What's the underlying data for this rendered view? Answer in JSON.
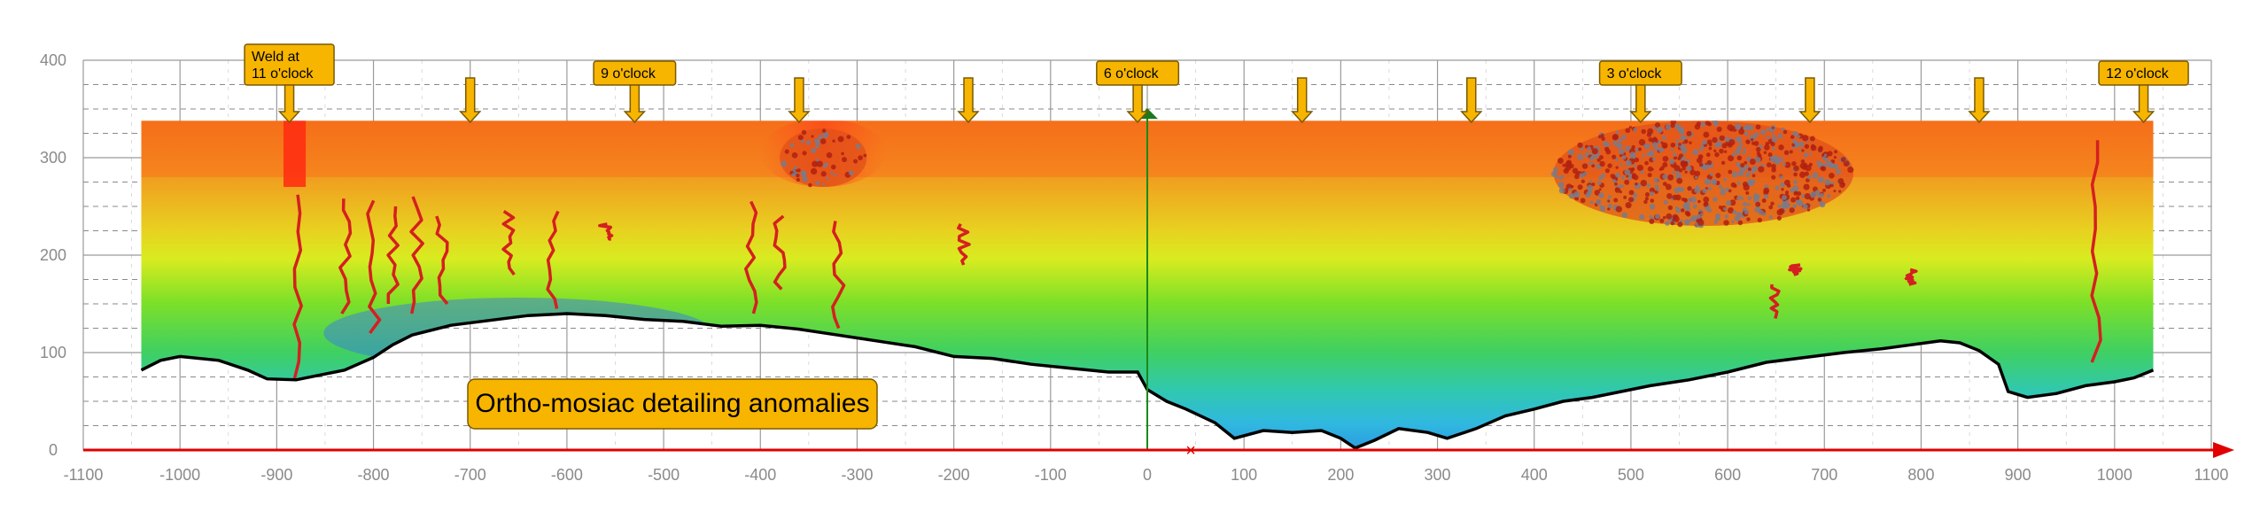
{
  "chart_data": {
    "type": "heatmap",
    "title": "Ortho-mosiac detailing anomalies",
    "xlim": [
      -1100,
      1100
    ],
    "ylim": [
      0,
      400
    ],
    "x_ticks": [
      -1100,
      -1000,
      -900,
      -800,
      -700,
      -600,
      -500,
      -400,
      -300,
      -200,
      -100,
      0,
      100,
      200,
      300,
      400,
      500,
      600,
      700,
      800,
      900,
      1000,
      1100
    ],
    "y_ticks": [
      0,
      100,
      200,
      300,
      400
    ],
    "grid": true,
    "colors": {
      "axis": "#e00000",
      "grid_major": "#9a9a9a",
      "grid_minor": "#8a8a8a",
      "callout_fill": "#f7b500",
      "callout_border": "#7a5a00",
      "crack": "#d42020",
      "profile": "#000000"
    },
    "callouts": [
      {
        "x": -887,
        "label": [
          "Weld at",
          "11 o'clock"
        ]
      },
      {
        "x": -530,
        "label": [
          "9 o'clock"
        ]
      },
      {
        "x": -10,
        "label": [
          "6 o'clock"
        ]
      },
      {
        "x": 510,
        "label": [
          "3 o'clock"
        ]
      },
      {
        "x": 1030,
        "label": [
          "12 o'clock"
        ]
      }
    ],
    "markers": [
      -700,
      -360,
      -185,
      160,
      335,
      685,
      860
    ],
    "top_profile_y": 338,
    "bottom_profile": [
      [
        -1040,
        82
      ],
      [
        -1020,
        92
      ],
      [
        -1000,
        96
      ],
      [
        -960,
        92
      ],
      [
        -930,
        82
      ],
      [
        -910,
        73
      ],
      [
        -880,
        72
      ],
      [
        -850,
        78
      ],
      [
        -830,
        82
      ],
      [
        -800,
        95
      ],
      [
        -780,
        108
      ],
      [
        -760,
        118
      ],
      [
        -720,
        128
      ],
      [
        -680,
        133
      ],
      [
        -640,
        138
      ],
      [
        -600,
        140
      ],
      [
        -560,
        138
      ],
      [
        -520,
        134
      ],
      [
        -480,
        132
      ],
      [
        -440,
        127
      ],
      [
        -400,
        128
      ],
      [
        -360,
        124
      ],
      [
        -320,
        118
      ],
      [
        -280,
        112
      ],
      [
        -240,
        106
      ],
      [
        -200,
        96
      ],
      [
        -160,
        94
      ],
      [
        -120,
        88
      ],
      [
        -80,
        84
      ],
      [
        -40,
        80
      ],
      [
        -10,
        80
      ],
      [
        0,
        62
      ],
      [
        20,
        50
      ],
      [
        40,
        42
      ],
      [
        70,
        28
      ],
      [
        90,
        12
      ],
      [
        120,
        20
      ],
      [
        150,
        18
      ],
      [
        180,
        20
      ],
      [
        200,
        12
      ],
      [
        215,
        2
      ],
      [
        235,
        10
      ],
      [
        260,
        22
      ],
      [
        290,
        18
      ],
      [
        310,
        12
      ],
      [
        340,
        22
      ],
      [
        370,
        35
      ],
      [
        400,
        42
      ],
      [
        430,
        50
      ],
      [
        460,
        54
      ],
      [
        490,
        60
      ],
      [
        520,
        66
      ],
      [
        560,
        72
      ],
      [
        600,
        80
      ],
      [
        640,
        90
      ],
      [
        680,
        95
      ],
      [
        720,
        100
      ],
      [
        760,
        104
      ],
      [
        790,
        108
      ],
      [
        820,
        112
      ],
      [
        840,
        110
      ],
      [
        860,
        102
      ],
      [
        880,
        88
      ],
      [
        890,
        60
      ],
      [
        910,
        54
      ],
      [
        940,
        58
      ],
      [
        970,
        66
      ],
      [
        1000,
        70
      ],
      [
        1020,
        74
      ],
      [
        1040,
        82
      ]
    ],
    "cracks": [
      {
        "x": -880,
        "y0": 72,
        "y1": 262
      },
      {
        "x": -830,
        "y0": 140,
        "y1": 258
      },
      {
        "x": -800,
        "y0": 120,
        "y1": 256
      },
      {
        "x": -780,
        "y0": 150,
        "y1": 250
      },
      {
        "x": -755,
        "y0": 140,
        "y1": 260
      },
      {
        "x": -730,
        "y0": 150,
        "y1": 240
      },
      {
        "x": -660,
        "y0": 180,
        "y1": 245
      },
      {
        "x": -615,
        "y0": 145,
        "y1": 245
      },
      {
        "x": -560,
        "y0": 215,
        "y1": 232
      },
      {
        "x": -410,
        "y0": 140,
        "y1": 255
      },
      {
        "x": -380,
        "y0": 165,
        "y1": 240
      },
      {
        "x": -320,
        "y0": 125,
        "y1": 235
      },
      {
        "x": -190,
        "y0": 190,
        "y1": 232
      },
      {
        "x": 650,
        "y0": 135,
        "y1": 170
      },
      {
        "x": 670,
        "y0": 180,
        "y1": 190
      },
      {
        "x": 790,
        "y0": 170,
        "y1": 185
      },
      {
        "x": 980,
        "y0": 90,
        "y1": 318
      }
    ],
    "anomaly_zones": [
      {
        "x0": 420,
        "x1": 730,
        "y0": 230,
        "y1": 338
      },
      {
        "x0": -380,
        "x1": -290,
        "y0": 270,
        "y1": 330
      }
    ]
  }
}
